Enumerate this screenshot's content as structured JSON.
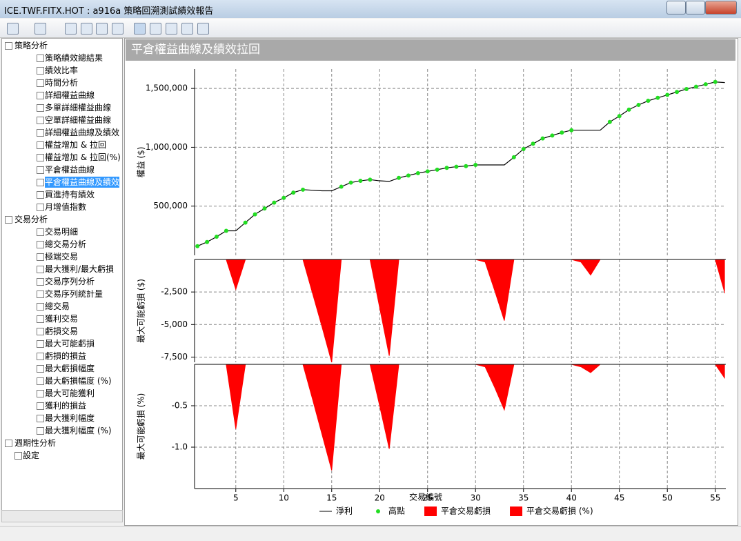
{
  "window": {
    "title": "ICE.TWF.FITX.HOT : a916a 策略回溯測試績效報告"
  },
  "panel": {
    "header": "平倉權益曲線及績效拉回"
  },
  "tree": {
    "groups": [
      {
        "label": "策略分析",
        "items": [
          "策略績效總結果",
          "績效比率",
          "時間分析",
          "詳細權益曲線",
          "多單詳細權益曲線",
          "空單詳細權益曲線",
          "詳細權益曲線及績效",
          "權益增加 & 拉回",
          "權益增加 & 拉回(%)",
          "平倉權益曲線",
          "平倉權益曲線及績效",
          "買進持有績效",
          "月增值指數"
        ]
      },
      {
        "label": "交易分析",
        "items": [
          "交易明細",
          "總交易分析",
          "極端交易",
          "最大獲利/最大虧損",
          "交易序列分析",
          "交易序列統計量",
          "總交易",
          "獲利交易",
          "虧損交易",
          "最大可能虧損",
          "虧損的損益",
          "最大虧損幅度",
          "最大虧損幅度 (%)",
          "最大可能獲利",
          "獲利的損益",
          "最大獲利幅度",
          "最大獲利幅度 (%)"
        ]
      },
      {
        "label": "週期性分析",
        "items": []
      }
    ],
    "leaf": "設定",
    "selected": "平倉權益曲線及績效"
  },
  "chart_data": [
    {
      "type": "line",
      "y_label": "權益 ($)",
      "x": [
        1,
        2,
        3,
        4,
        5,
        6,
        7,
        8,
        9,
        10,
        11,
        12,
        13,
        14,
        15,
        16,
        17,
        18,
        19,
        20,
        21,
        22,
        23,
        24,
        25,
        26,
        27,
        28,
        29,
        30,
        31,
        32,
        33,
        34,
        35,
        36,
        37,
        38,
        39,
        40,
        41,
        42,
        43,
        44,
        45,
        46,
        47,
        48,
        49,
        50,
        51,
        52,
        53,
        54,
        55,
        56
      ],
      "xlim": [
        0.7,
        56.1
      ],
      "ylim": [
        82000,
        1665000
      ],
      "yticks": [
        {
          "value": 500000,
          "label": "500,000"
        },
        {
          "value": 1000000,
          "label": "1,000,000"
        },
        {
          "value": 1500000,
          "label": "1,500,000"
        }
      ],
      "grid": true,
      "series": [
        {
          "name": "淨利",
          "color": "#000000",
          "mark": "line",
          "values": [
            160000,
            195000,
            240000,
            290000,
            290000,
            360000,
            430000,
            480000,
            530000,
            570000,
            615000,
            640000,
            635000,
            630000,
            630000,
            665000,
            700000,
            715000,
            725000,
            715000,
            710000,
            740000,
            760000,
            780000,
            795000,
            810000,
            825000,
            835000,
            840000,
            850000,
            850000,
            850000,
            850000,
            915000,
            985000,
            1030000,
            1075000,
            1100000,
            1125000,
            1145000,
            1145000,
            1145000,
            1145000,
            1215000,
            1265000,
            1320000,
            1360000,
            1395000,
            1420000,
            1445000,
            1470000,
            1495000,
            1515000,
            1535000,
            1555000,
            1550000
          ]
        },
        {
          "name": "高點",
          "color": "#22dd22",
          "mark": "dot",
          "values": [
            160000,
            195000,
            240000,
            290000,
            null,
            360000,
            430000,
            480000,
            530000,
            570000,
            615000,
            640000,
            null,
            null,
            null,
            665000,
            700000,
            715000,
            725000,
            null,
            null,
            740000,
            760000,
            780000,
            795000,
            810000,
            825000,
            835000,
            840000,
            850000,
            null,
            null,
            null,
            915000,
            985000,
            1030000,
            1075000,
            1100000,
            1125000,
            1145000,
            null,
            null,
            null,
            1215000,
            1265000,
            1320000,
            1360000,
            1395000,
            1420000,
            1445000,
            1470000,
            1495000,
            1515000,
            1535000,
            1555000,
            null
          ]
        }
      ]
    },
    {
      "type": "area",
      "y_label": "最大可能虧損 ($)",
      "x": [
        1,
        2,
        3,
        4,
        5,
        6,
        7,
        8,
        9,
        10,
        11,
        12,
        13,
        14,
        15,
        16,
        17,
        18,
        19,
        20,
        21,
        22,
        23,
        24,
        25,
        26,
        27,
        28,
        29,
        30,
        31,
        32,
        33,
        34,
        35,
        36,
        37,
        38,
        39,
        40,
        41,
        42,
        43,
        44,
        45,
        46,
        47,
        48,
        49,
        50,
        51,
        52,
        53,
        54,
        55,
        56
      ],
      "xlim": [
        0.7,
        56.1
      ],
      "ylim": [
        -7900,
        0
      ],
      "yticks": [
        {
          "value": -7500,
          "label": "-7,500"
        },
        {
          "value": -5000,
          "label": "-5,000"
        },
        {
          "value": -2500,
          "label": "-2,500"
        }
      ],
      "grid": true,
      "series": [
        {
          "name": "平倉交易虧損",
          "color": "#ff0000",
          "values": [
            0,
            0,
            0,
            0,
            -2300,
            0,
            0,
            0,
            0,
            0,
            0,
            0,
            -2600,
            -5200,
            -7900,
            0,
            0,
            0,
            0,
            -3700,
            -7400,
            0,
            0,
            0,
            0,
            0,
            0,
            0,
            0,
            0,
            -200,
            -2400,
            -4700,
            0,
            0,
            0,
            0,
            0,
            0,
            0,
            -200,
            -1200,
            0,
            0,
            0,
            0,
            0,
            0,
            0,
            0,
            0,
            0,
            0,
            0,
            0,
            -2600
          ]
        }
      ]
    },
    {
      "type": "area",
      "y_label": "最大可能虧損 (%)",
      "x_label": "交易編號",
      "x": [
        1,
        2,
        3,
        4,
        5,
        6,
        7,
        8,
        9,
        10,
        11,
        12,
        13,
        14,
        15,
        16,
        17,
        18,
        19,
        20,
        21,
        22,
        23,
        24,
        25,
        26,
        27,
        28,
        29,
        30,
        31,
        32,
        33,
        34,
        35,
        36,
        37,
        38,
        39,
        40,
        41,
        42,
        43,
        44,
        45,
        46,
        47,
        48,
        49,
        50,
        51,
        52,
        53,
        54,
        55,
        56
      ],
      "xlim": [
        0.7,
        56.1
      ],
      "ylim": [
        -1.5,
        0
      ],
      "xticks": [
        5,
        10,
        15,
        20,
        25,
        30,
        35,
        40,
        45,
        50,
        55
      ],
      "yticks": [
        {
          "value": -1,
          "label": "-1.0"
        },
        -0.5
      ],
      "grid": true,
      "series": [
        {
          "name": "平倉交易虧損 (%)",
          "color": "#ff0000",
          "values": [
            0,
            0,
            0,
            0,
            -0.78,
            0,
            0,
            0,
            0,
            0,
            0,
            0,
            -0.42,
            -0.85,
            -1.28,
            0,
            0,
            0,
            0,
            -0.5,
            -1.02,
            0,
            0,
            0,
            0,
            0,
            0,
            0,
            0,
            0,
            -0.03,
            -0.28,
            -0.55,
            0,
            0,
            0,
            0,
            0,
            0,
            0,
            -0.03,
            -0.1,
            0,
            0,
            0,
            0,
            0,
            0,
            0,
            0,
            0,
            0,
            0,
            0,
            0,
            -0.17
          ]
        }
      ]
    }
  ]
}
